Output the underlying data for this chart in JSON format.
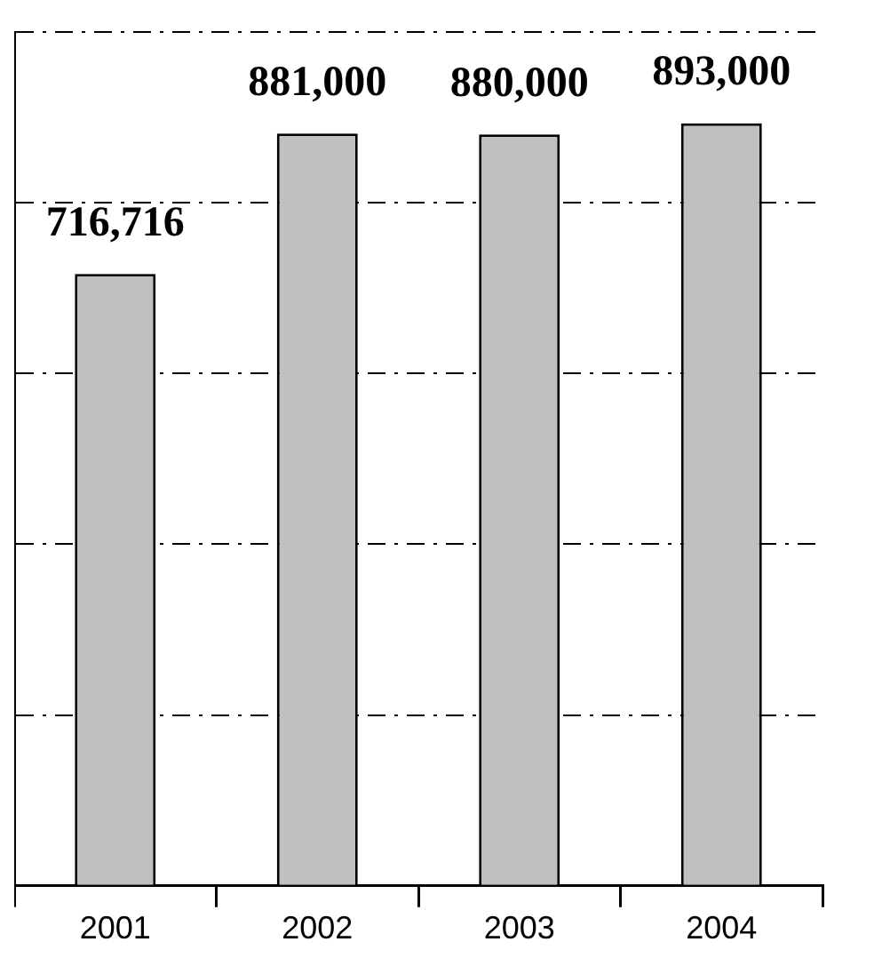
{
  "chart_data": {
    "type": "bar",
    "categories": [
      "2001",
      "2002",
      "2003",
      "2004"
    ],
    "values": [
      716716,
      881000,
      880000,
      893000
    ],
    "color": "#c0c0c0",
    "value_labels": [
      "716,716",
      "881,000",
      "880,000",
      "893,000"
    ],
    "grid": "y",
    "tick_labels": "x"
  }
}
